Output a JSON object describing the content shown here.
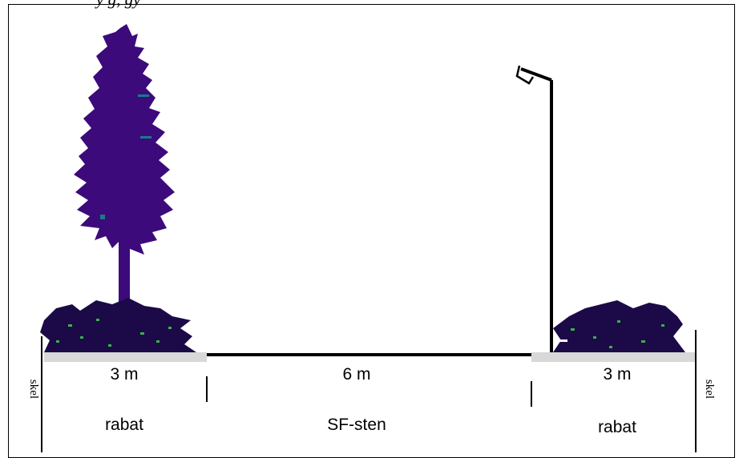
{
  "title": "y g, gy",
  "dimensions": [
    "3 m",
    "6 m",
    "3 m"
  ],
  "zones": [
    "rabat",
    "SF-sten",
    "rabat"
  ],
  "boundary": [
    "skel",
    "skel"
  ]
}
